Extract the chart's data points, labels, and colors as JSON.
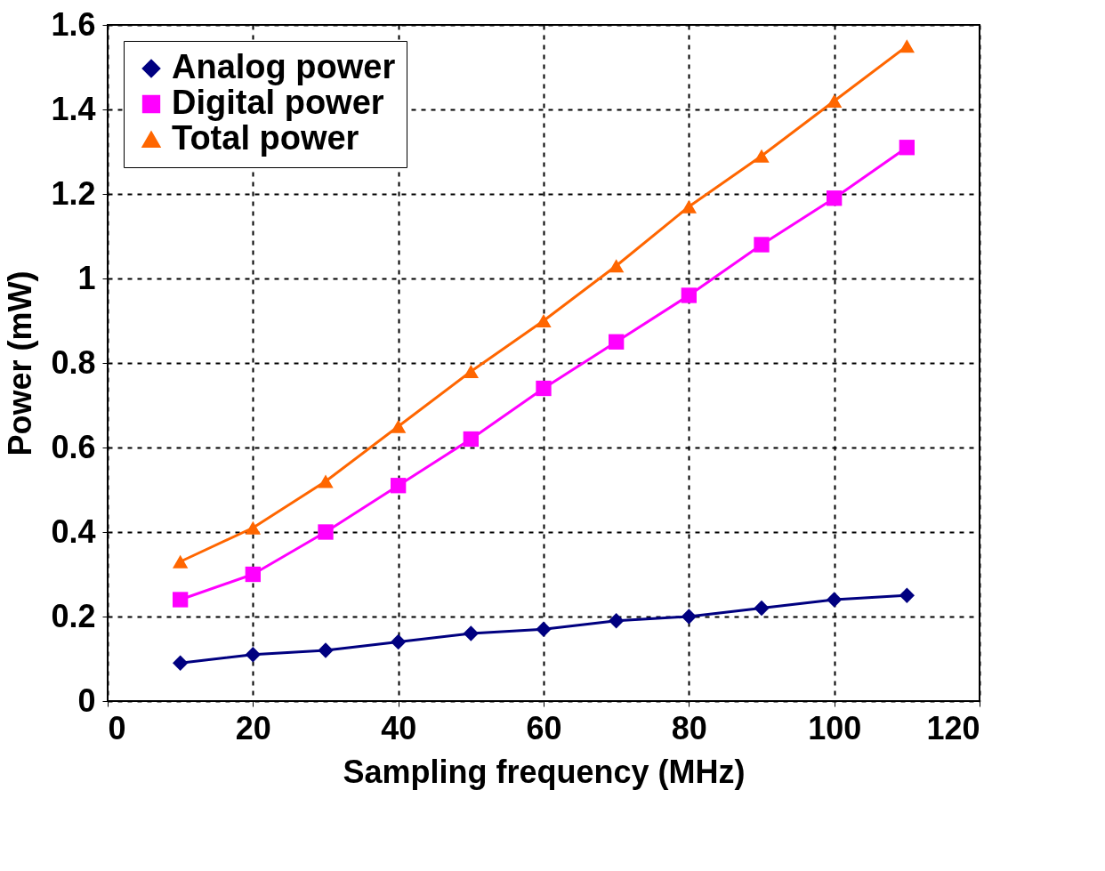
{
  "chart_data": {
    "type": "line",
    "xlabel": "Sampling frequency (MHz)",
    "ylabel": "Power (mW)",
    "x": [
      10,
      20,
      30,
      40,
      50,
      60,
      70,
      80,
      90,
      100,
      110
    ],
    "xlim": [
      0,
      120
    ],
    "xticks": [
      0,
      20,
      40,
      60,
      80,
      100,
      120
    ],
    "ylim": [
      0,
      1.6
    ],
    "yticks": [
      0,
      0.2,
      0.4,
      0.6,
      0.8,
      1,
      1.2,
      1.4,
      1.6
    ],
    "grid": true,
    "legend": "top left",
    "line_style": "solid",
    "series": [
      {
        "name": "Analog power",
        "color": "#000080",
        "marker": "diamond",
        "values": [
          0.09,
          0.11,
          0.12,
          0.14,
          0.16,
          0.17,
          0.19,
          0.2,
          0.22,
          0.24,
          0.25
        ]
      },
      {
        "name": "Digital power",
        "color": "#ff00ff",
        "marker": "square",
        "values": [
          0.24,
          0.3,
          0.4,
          0.51,
          0.62,
          0.74,
          0.85,
          0.96,
          1.08,
          1.19,
          1.31
        ]
      },
      {
        "name": "Total power",
        "color": "#ff6600",
        "marker": "triangle",
        "values": [
          0.33,
          0.41,
          0.52,
          0.65,
          0.78,
          0.9,
          1.03,
          1.17,
          1.29,
          1.42,
          1.55
        ]
      }
    ]
  }
}
